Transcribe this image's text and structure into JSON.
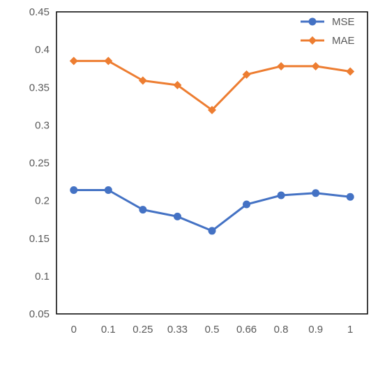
{
  "chart_data": {
    "type": "line",
    "categories": [
      "0",
      "0.1",
      "0.25",
      "0.33",
      "0.5",
      "0.66",
      "0.8",
      "0.9",
      "1"
    ],
    "series": [
      {
        "name": "MSE",
        "color": "#4472C4",
        "marker": "circle",
        "values": [
          0.214,
          0.214,
          0.188,
          0.179,
          0.16,
          0.195,
          0.207,
          0.21,
          0.205
        ]
      },
      {
        "name": "MAE",
        "color": "#ED7D31",
        "marker": "diamond",
        "values": [
          0.385,
          0.385,
          0.359,
          0.353,
          0.32,
          0.367,
          0.378,
          0.378,
          0.371
        ]
      }
    ],
    "yticks": [
      "0.05",
      "0.1",
      "0.15",
      "0.2",
      "0.25",
      "0.3",
      "0.35",
      "0.4",
      "0.45"
    ],
    "ylim": [
      0.05,
      0.45
    ],
    "grid": false,
    "legend_position": "top-right",
    "title": "",
    "xlabel": "",
    "ylabel": ""
  }
}
